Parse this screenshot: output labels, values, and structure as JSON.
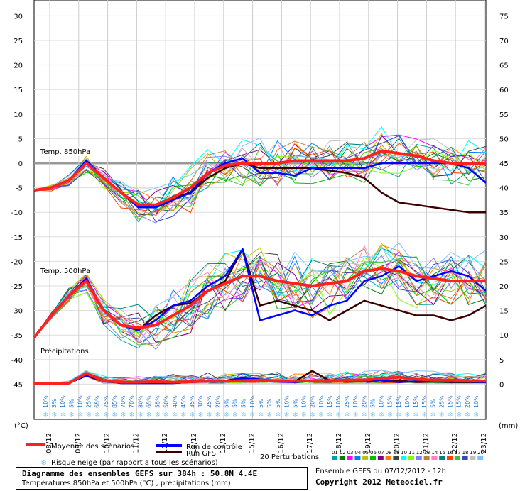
{
  "chart_data": {
    "type": "line",
    "left_axis_unit": "(°C)",
    "right_axis_unit": "(mm)",
    "left_ticks": [
      30,
      25,
      20,
      15,
      10,
      5,
      0,
      -5,
      -10,
      -15,
      -20,
      -25,
      -30,
      -35,
      -40,
      -45
    ],
    "right_ticks": [
      75,
      70,
      65,
      60,
      55,
      50,
      45,
      40,
      35,
      30,
      25,
      20,
      15,
      10,
      5,
      0
    ],
    "x_labels": [
      "08/12",
      "09/12",
      "10/12",
      "11/12",
      "12/12",
      "13/12",
      "14/12",
      "15/12",
      "16/12",
      "17/12",
      "18/12",
      "19/12",
      "20/12",
      "21/12",
      "22/12",
      "23/12"
    ],
    "panels": {
      "t850": "Temp. 850hPa",
      "t500": "Temp. 500hPa",
      "precip": "Précipitations"
    },
    "t850": {
      "mean": [
        -5.5,
        -5,
        -3.5,
        0,
        -3,
        -6,
        -8.5,
        -8.5,
        -7,
        -5,
        -2,
        -0.5,
        0,
        0,
        0,
        0.5,
        0.5,
        0.5,
        0.5,
        1,
        2.5,
        2,
        1.5,
        0.5,
        0,
        0,
        0
      ],
      "control": [
        -5.5,
        -5,
        -3.5,
        0.5,
        -3,
        -6,
        -9,
        -9,
        -7.5,
        -6,
        -2,
        0,
        1,
        -2,
        -2,
        -2.5,
        -1,
        -1,
        -1,
        -1,
        0,
        0,
        0,
        0,
        0,
        -1,
        -4
      ],
      "gfs": [
        -5.5,
        -5,
        -3.5,
        0.5,
        -3,
        -6,
        -8.5,
        -8.5,
        -7,
        -6,
        -3,
        -1,
        0,
        -1,
        -1,
        -1,
        -1,
        -1.5,
        -2,
        -3,
        -6,
        -8,
        -8.5,
        -9,
        -9.5,
        -10,
        -10
      ]
    },
    "t500": {
      "mean": [
        -35.5,
        -31,
        -27,
        -24,
        -30,
        -33,
        -33.5,
        -33,
        -31,
        -29,
        -26,
        -24.5,
        -23,
        -23,
        -24,
        -24.5,
        -25,
        -24.5,
        -24,
        -22,
        -21.5,
        -22,
        -23,
        -23.5,
        -24,
        -24,
        -24
      ],
      "control": [
        -35.5,
        -31,
        -27,
        -23.5,
        -30,
        -33,
        -34,
        -32,
        -29,
        -28,
        -25,
        -23,
        -17.5,
        -32,
        -31,
        -30,
        -31,
        -29,
        -28,
        -24,
        -23,
        -21,
        -24,
        -23,
        -22,
        -23,
        -26
      ],
      "gfs": [
        -35.5,
        -31,
        -27,
        -24,
        -30,
        -33,
        -34,
        -31,
        -29,
        -28.5,
        -26,
        -24,
        -17.5,
        -29,
        -28,
        -29,
        -30,
        -32,
        -30,
        -28,
        -29,
        -30,
        -31,
        -31,
        -32,
        -31,
        -29
      ]
    },
    "precip": {
      "mean": [
        0,
        0,
        0,
        2,
        0.5,
        0.2,
        0.2,
        0.3,
        0.2,
        0.3,
        0.4,
        0.4,
        0.5,
        0.6,
        0.5,
        0.4,
        0.5,
        0.5,
        0.6,
        0.6,
        1,
        1.2,
        0.8,
        0.6,
        0.6,
        0.5,
        0.4
      ],
      "control": [
        0,
        0,
        0,
        1.5,
        0.5,
        0,
        0,
        0,
        0,
        0.2,
        0.3,
        0.5,
        1,
        0.8,
        0.3,
        0.2,
        0.5,
        0.4,
        0.3,
        0.8,
        0.5,
        0.2,
        0.4,
        0.3,
        0.3,
        0.3,
        0.2
      ],
      "gfs": [
        0,
        0,
        0,
        1.5,
        0.4,
        0,
        0,
        0,
        0,
        0.2,
        0.4,
        0.5,
        1,
        0.5,
        0.4,
        0.3,
        2.5,
        0.5,
        0.3,
        0.4,
        0.6,
        0.5,
        0.2,
        0.3,
        0.2,
        0.2,
        0.2
      ]
    },
    "snow_percentages": [
      "10%",
      "5%",
      "10%",
      "5%",
      "10%",
      "25%",
      "65%",
      "75%",
      "85%",
      "70%",
      "70%",
      "80%",
      "65%",
      "55%",
      "50%",
      "40%",
      "45%",
      "35%",
      "30%",
      "25%",
      "20%",
      "5%",
      "5%",
      "5%",
      "10%",
      "5%",
      "5%",
      "5%",
      "10%",
      "5%",
      "10%",
      "20%",
      "10%",
      "15%",
      "10%",
      "25%",
      "10%",
      "20%",
      "5%",
      "10%",
      "15%",
      "15%",
      "10%",
      "15%",
      "15%",
      "5%",
      "25%",
      "15%",
      "15%",
      "20%",
      "10%"
    ],
    "legend": {
      "mean": "Moyenne des scénarios",
      "control": "Run de contrôle",
      "gfs": "Run GFS",
      "perturbations": "20 Perturbations",
      "snow": "Risque neige (par rapport a tous les scénarios)",
      "perturbation_numbers": [
        "01",
        "02",
        "03",
        "04",
        "05",
        "06",
        "07",
        "08",
        "09",
        "10",
        "11",
        "12",
        "13",
        "14",
        "15",
        "16",
        "17",
        "18",
        "19",
        "20"
      ]
    },
    "colors": {
      "mean": "#ff2020",
      "control": "#0000ff",
      "gfs": "#3a0000",
      "snow": "#7fc8f8",
      "perturbations": [
        "#00a0a0",
        "#008000",
        "#ff00ff",
        "#0080ff",
        "#c0c000",
        "#00c000",
        "#800080",
        "#ff8000",
        "#404040",
        "#00ffff",
        "#80ff00",
        "#8080ff",
        "#c08040",
        "#ff80c0",
        "#008080",
        "#ff4000",
        "#40c040",
        "#4040c0",
        "#c0c0c0",
        "#80c0ff"
      ]
    }
  },
  "footer": {
    "title": "Diagramme des ensembles GEFS sur 384h : 50.8N 4.4E",
    "subtitle": "Températures 850hPa et 500hPa (°C) , précipitations (mm)",
    "run": "Ensemble GEFS du 07/12/2012 - 12h",
    "copyright": "Copyright 2012 Meteociel.fr"
  }
}
